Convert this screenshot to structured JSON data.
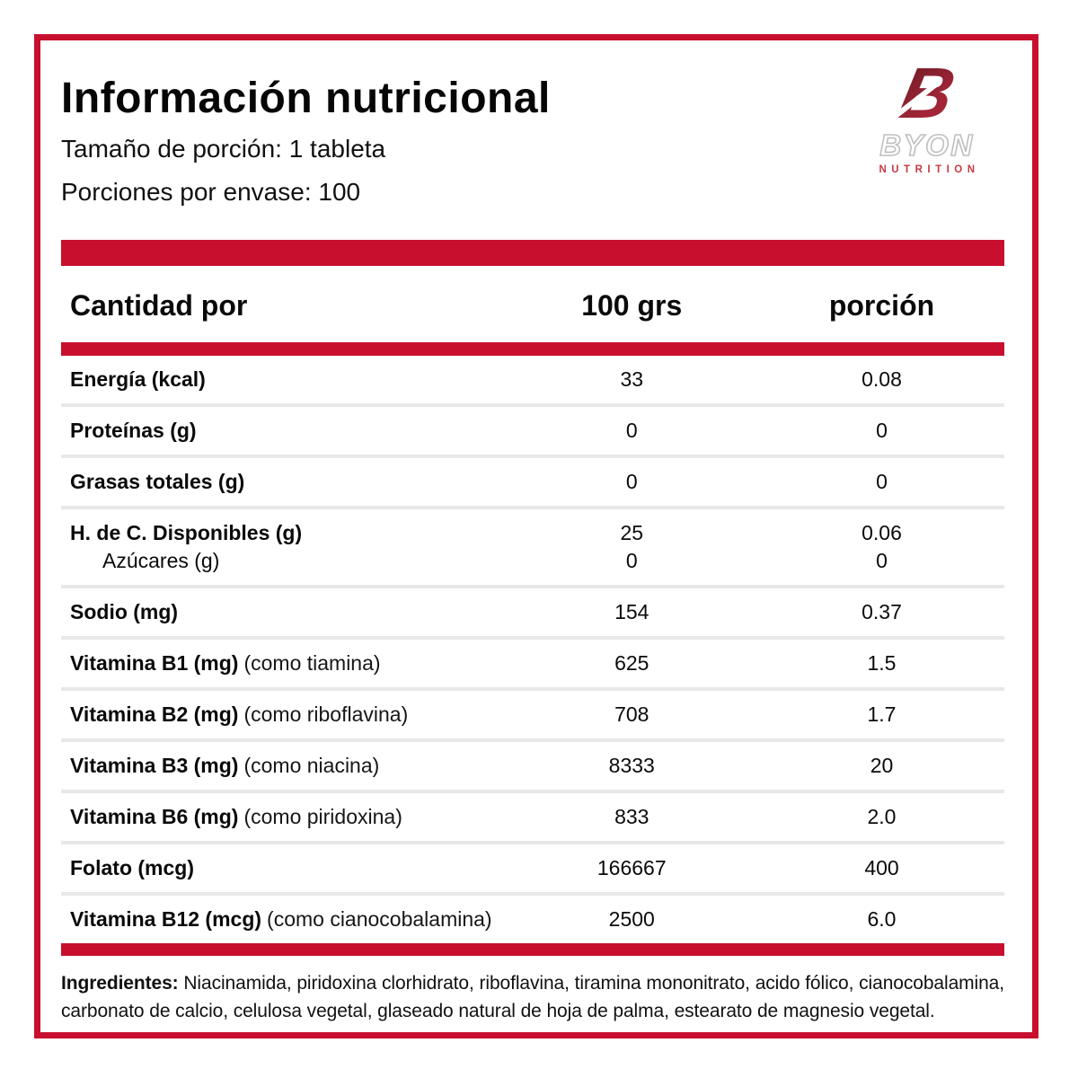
{
  "brand": {
    "monogram": "B",
    "name": "BYON",
    "tagline": "NUTRITION"
  },
  "header": {
    "title": "Información nutricional",
    "serving_size": "Tamaño de porción: 1 tableta",
    "servings_per_container": "Porciones por envase: 100"
  },
  "table": {
    "header": {
      "label": "Cantidad por",
      "col_100g": "100 grs",
      "col_portion": "porción"
    },
    "rows": [
      {
        "label": "Energía (kcal)",
        "note": "",
        "per100": "33",
        "portion": "0.08"
      },
      {
        "label": "Proteínas (g)",
        "note": "",
        "per100": "0",
        "portion": "0"
      },
      {
        "label": "Grasas totales (g)",
        "note": "",
        "per100": "0",
        "portion": "0"
      },
      {
        "label": "H. de C. Disponibles (g)",
        "note": "",
        "per100": "25",
        "portion": "0.06",
        "sub": {
          "label": "Azúcares (g)",
          "per100": "0",
          "portion": "0"
        }
      },
      {
        "label": "Sodio (mg)",
        "note": "",
        "per100": "154",
        "portion": "0.37"
      },
      {
        "label": "Vitamina B1 (mg)",
        "note": "(como tiamina)",
        "per100": "625",
        "portion": "1.5"
      },
      {
        "label": "Vitamina B2 (mg)",
        "note": "(como riboflavina)",
        "per100": "708",
        "portion": "1.7"
      },
      {
        "label": "Vitamina B3 (mg)",
        "note": "(como niacina)",
        "per100": "8333",
        "portion": "20"
      },
      {
        "label": "Vitamina B6 (mg)",
        "note": "(como piridoxina)",
        "per100": "833",
        "portion": "2.0"
      },
      {
        "label": "Folato (mcg)",
        "note": "",
        "per100": "166667",
        "portion": "400"
      },
      {
        "label": "Vitamina B12 (mcg)",
        "note": "(como cianocobalamina)",
        "per100": "2500",
        "portion": "6.0"
      }
    ]
  },
  "ingredients": {
    "label": "Ingredientes:",
    "text": " Niacinamida, piridoxina clorhidrato, riboflavina, tiramina mononitrato, acido fólico, cianocobalamina, carbonato de calcio, celulosa vegetal, glaseado natural de hoja de palma, estearato de magnesio vegetal."
  },
  "colors": {
    "accent_red": "#c8102e",
    "logo_maroon": "#8c2332",
    "separator_gray": "#e8e8e8"
  }
}
